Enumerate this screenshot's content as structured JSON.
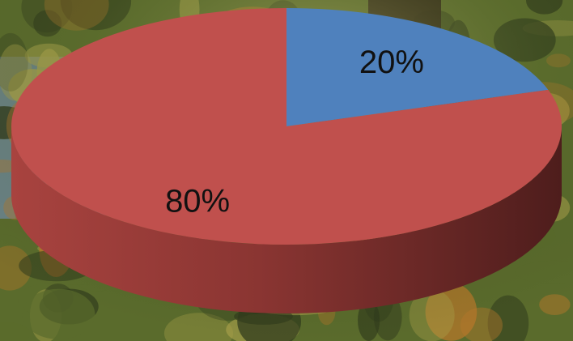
{
  "chart_data": {
    "type": "pie",
    "three_d": true,
    "title": "",
    "slices": [
      {
        "label": "20%",
        "value": 20,
        "color": "#4f81bd"
      },
      {
        "label": "80%",
        "value": 80,
        "color": "#c0504d"
      }
    ]
  },
  "background": {
    "kind": "photograph",
    "subject": "forest-and-lake",
    "colors": {
      "foliage_dark": "#2f3a1c",
      "foliage_mid": "#5a6b2c",
      "foliage_light": "#a7a04a",
      "autumn": "#b7772a",
      "water": "#6f8a9e",
      "trunk": "#2a1f14"
    }
  }
}
